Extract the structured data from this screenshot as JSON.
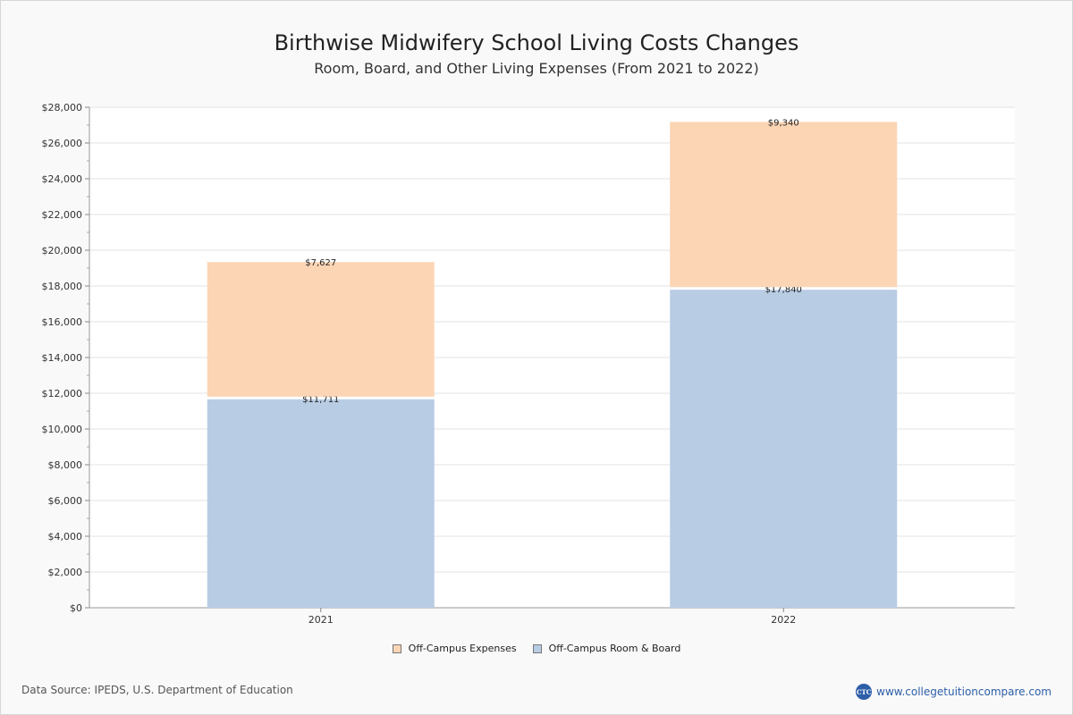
{
  "title": "Birthwise Midwifery School Living Costs Changes",
  "subtitle": "Room, Board, and Other Living Expenses (From 2021 to 2022)",
  "chart_data": {
    "type": "bar",
    "stacked": true,
    "categories": [
      "2021",
      "2022"
    ],
    "series": [
      {
        "name": "Off-Campus Room & Board",
        "values": [
          11711,
          17840
        ],
        "labels": [
          "$11,711",
          "$17,840"
        ],
        "color": "#b8cce4"
      },
      {
        "name": "Off-Campus Expenses",
        "values": [
          7627,
          9340
        ],
        "labels": [
          "$7,627",
          "$9,340"
        ],
        "color": "#fcd5b5"
      }
    ],
    "ylim": [
      0,
      28000
    ],
    "yticks": [
      "$0",
      "$2,000",
      "$4,000",
      "$6,000",
      "$8,000",
      "$10,000",
      "$12,000",
      "$14,000",
      "$16,000",
      "$18,000",
      "$20,000",
      "$22,000",
      "$24,000",
      "$26,000",
      "$28,000"
    ],
    "grid": true,
    "legend_position": "bottom"
  },
  "legend": [
    {
      "label": "Off-Campus Expenses",
      "color": "#fcd5b5"
    },
    {
      "label": "Off-Campus Room & Board",
      "color": "#b8cce4"
    }
  ],
  "footer": {
    "source": "Data Source: IPEDS, U.S. Department of Education",
    "brand_logo": "CTC",
    "brand_url": "www.collegetuitioncompare.com"
  }
}
